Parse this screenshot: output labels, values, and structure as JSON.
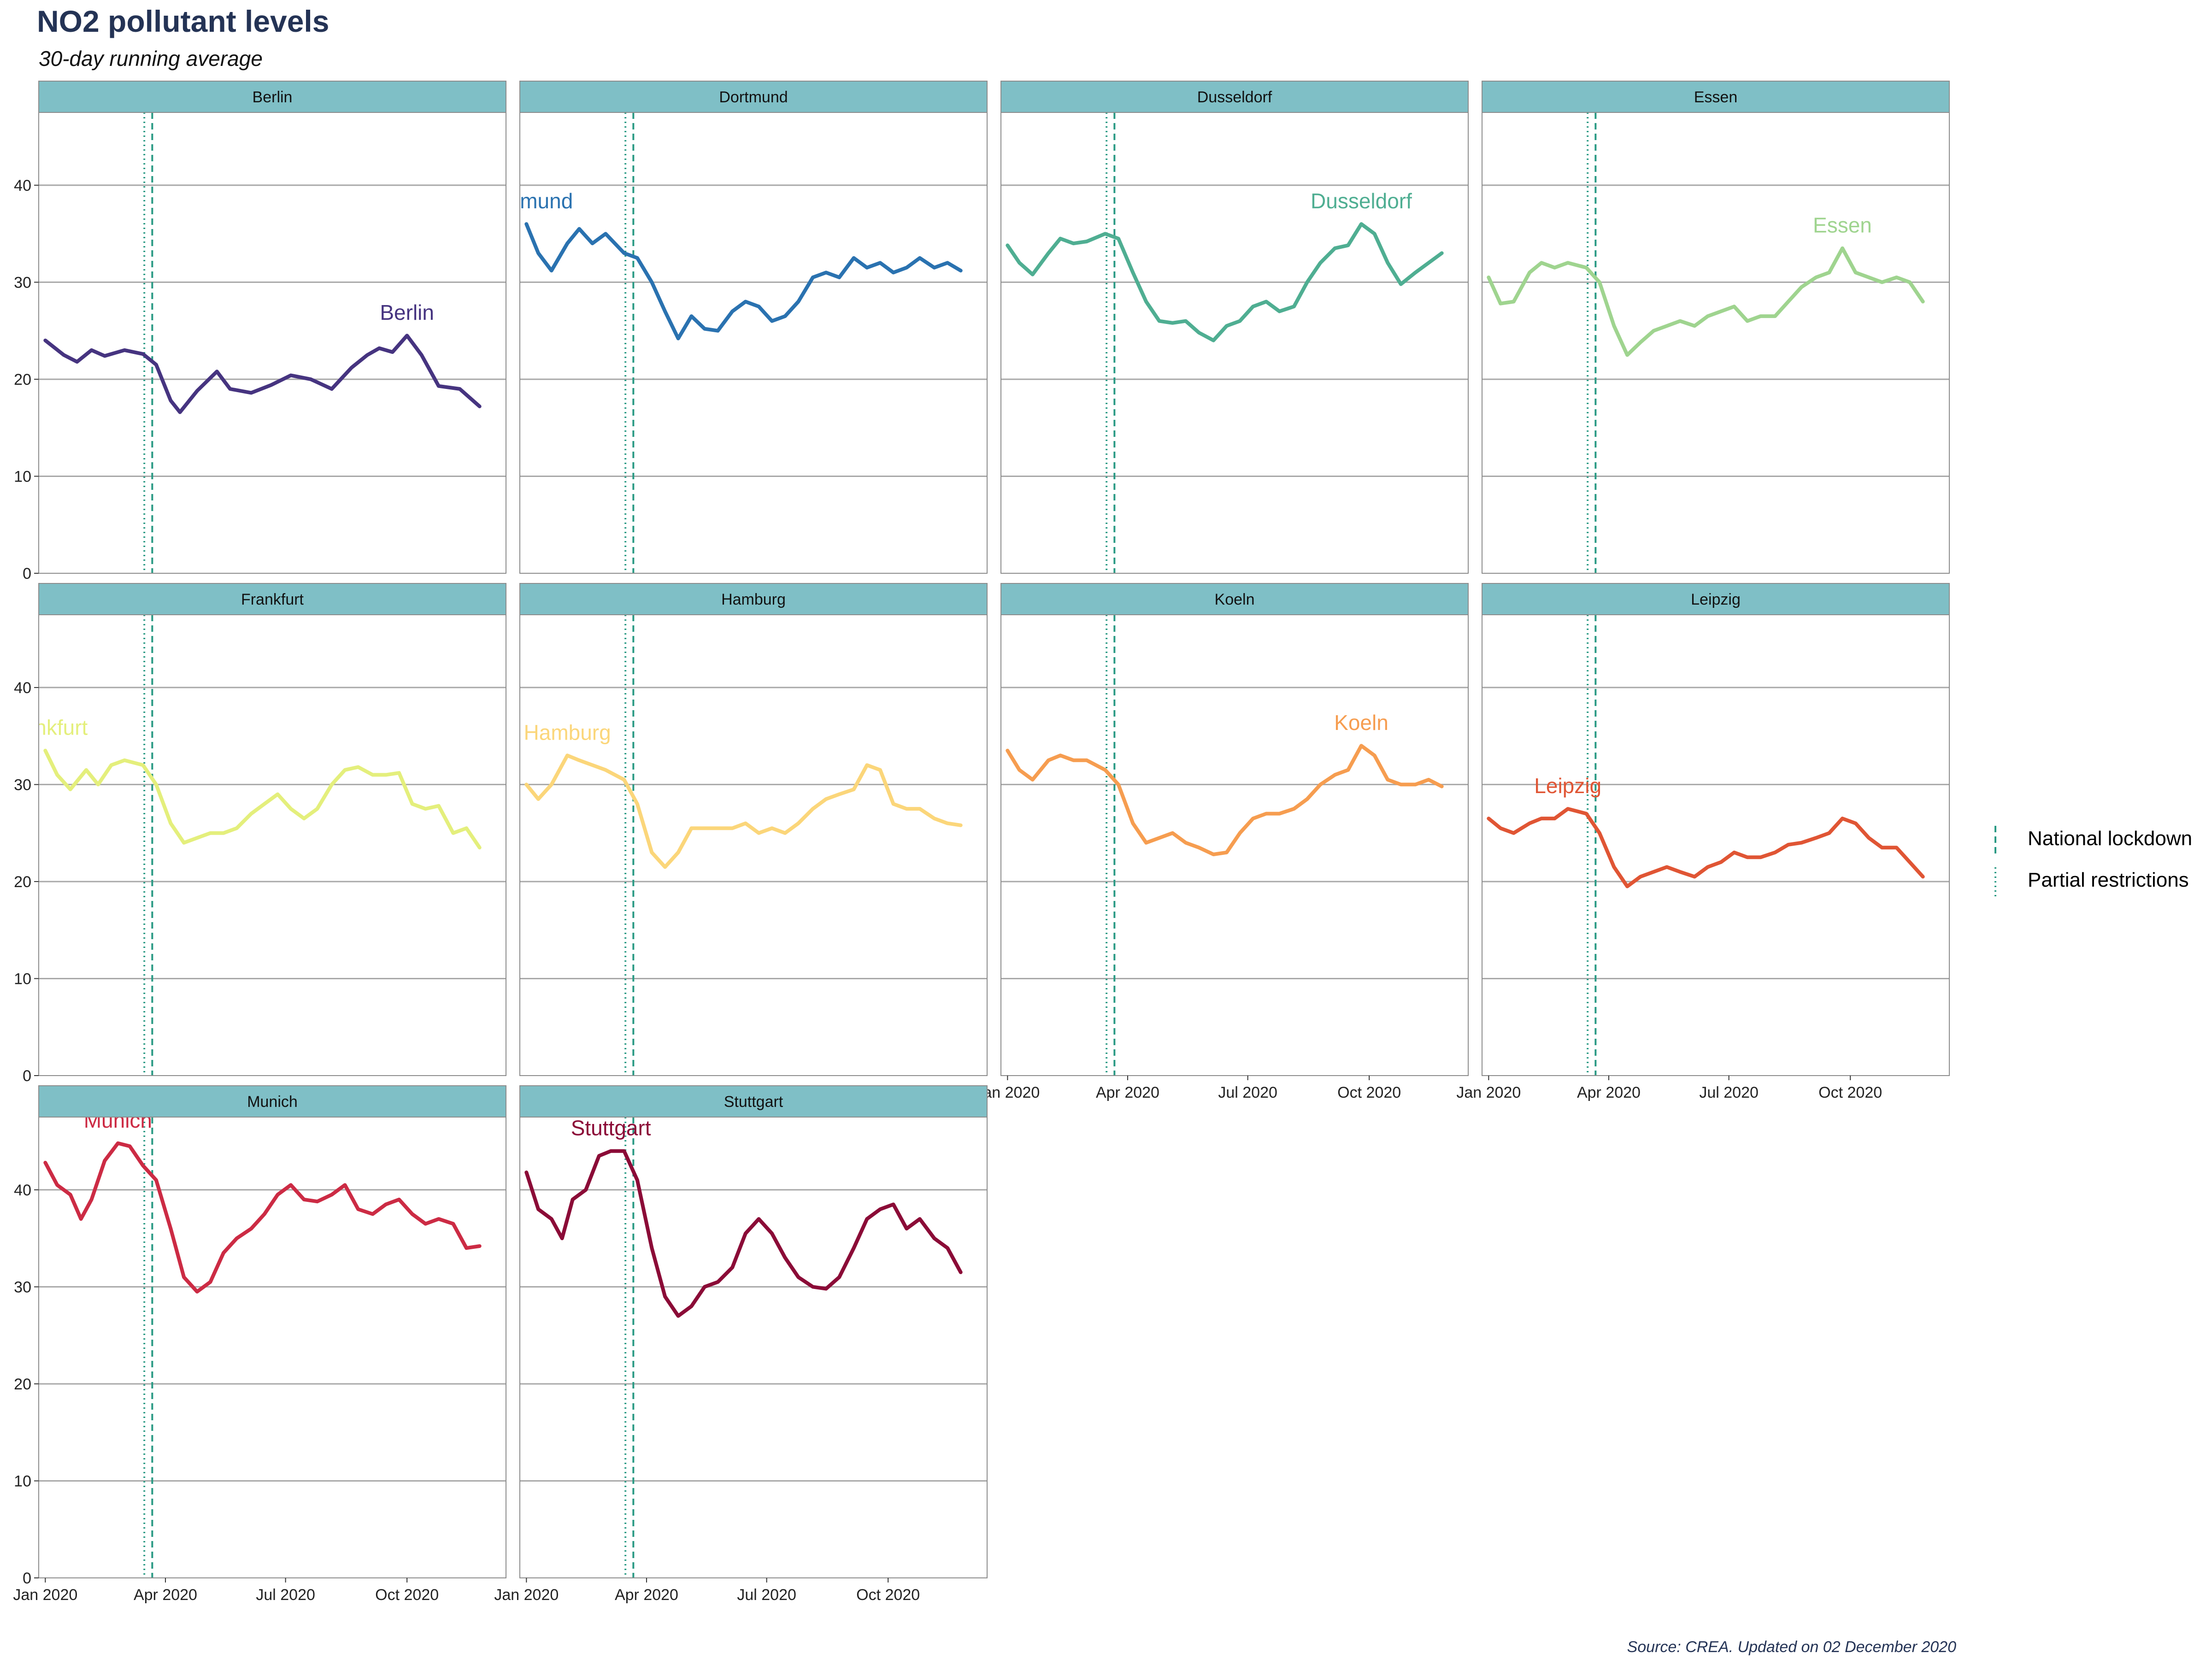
{
  "title": "NO2 pollutant levels",
  "subtitle": "30-day running average",
  "caption": "Source: CREA. Updated on 02 December 2020",
  "colors": {
    "strip": "#7fbfc6",
    "grid": "#a8a8a8",
    "frame": "#8c8c8c",
    "reference_line": "#2a9a84"
  },
  "legend": {
    "placement": "right",
    "items": [
      {
        "label": "National lockdown",
        "linetype": "dashed"
      },
      {
        "label": "Partial restrictions",
        "linetype": "dotted"
      }
    ]
  },
  "chart_data": {
    "type": "line",
    "facets": "small multiples, 4 columns",
    "x_axis": {
      "type": "date",
      "range": [
        "2019-12-27",
        "2020-12-15"
      ],
      "ticks": [
        "2020-01-01",
        "2020-04-01",
        "2020-07-01",
        "2020-10-01"
      ],
      "tick_labels": [
        "Jan 2020",
        "Apr 2020",
        "Jul 2020",
        "Oct 2020"
      ]
    },
    "y_axis": {
      "range": [
        0,
        47.5
      ],
      "ticks": [
        0,
        10,
        20,
        30,
        40
      ],
      "grid": true
    },
    "reference_lines": [
      {
        "label": "Partial restrictions",
        "date": "2020-03-16",
        "linetype": "dotted"
      },
      {
        "label": "National lockdown",
        "date": "2020-03-22",
        "linetype": "dashed"
      }
    ],
    "series": [
      {
        "name": "Berlin",
        "color": "#463480",
        "x": [
          "2020-01-01",
          "2020-01-15",
          "2020-01-25",
          "2020-02-05",
          "2020-02-15",
          "2020-03-01",
          "2020-03-15",
          "2020-03-25",
          "2020-04-05",
          "2020-04-12",
          "2020-04-25",
          "2020-05-10",
          "2020-05-20",
          "2020-06-05",
          "2020-06-20",
          "2020-07-05",
          "2020-07-20",
          "2020-08-05",
          "2020-08-20",
          "2020-09-01",
          "2020-09-10",
          "2020-09-20",
          "2020-10-01",
          "2020-10-12",
          "2020-10-25",
          "2020-11-10",
          "2020-11-25"
        ],
        "y": [
          24,
          22.5,
          21.8,
          23,
          22.4,
          23,
          22.6,
          21.5,
          17.8,
          16.6,
          18.8,
          20.8,
          19,
          18.6,
          19.4,
          20.4,
          20,
          19,
          21.2,
          22.5,
          23.2,
          22.8,
          24.5,
          22.5,
          19.3,
          19,
          17.2
        ]
      },
      {
        "name": "Dortmund",
        "color": "#2a72b0",
        "x": [
          "2020-01-01",
          "2020-01-10",
          "2020-01-20",
          "2020-02-01",
          "2020-02-10",
          "2020-02-20",
          "2020-03-01",
          "2020-03-15",
          "2020-03-25",
          "2020-04-05",
          "2020-04-15",
          "2020-04-25",
          "2020-05-05",
          "2020-05-15",
          "2020-05-25",
          "2020-06-05",
          "2020-06-15",
          "2020-06-25",
          "2020-07-05",
          "2020-07-15",
          "2020-07-25",
          "2020-08-05",
          "2020-08-15",
          "2020-08-25",
          "2020-09-05",
          "2020-09-15",
          "2020-09-25",
          "2020-10-05",
          "2020-10-15",
          "2020-10-25",
          "2020-11-05",
          "2020-11-15",
          "2020-11-25"
        ],
        "y": [
          36,
          33,
          31.2,
          34,
          35.5,
          34,
          35,
          33,
          32.5,
          30,
          27,
          24.2,
          26.5,
          25.2,
          25,
          27,
          28,
          27.5,
          26,
          26.5,
          28,
          30.5,
          31,
          30.5,
          32.5,
          31.5,
          32,
          31,
          31.5,
          32.5,
          31.5,
          32,
          31.2
        ]
      },
      {
        "name": "Dusseldorf",
        "color": "#4fae92",
        "x": [
          "2020-01-01",
          "2020-01-10",
          "2020-01-20",
          "2020-02-01",
          "2020-02-10",
          "2020-02-20",
          "2020-03-01",
          "2020-03-15",
          "2020-03-25",
          "2020-04-05",
          "2020-04-15",
          "2020-04-25",
          "2020-05-05",
          "2020-05-15",
          "2020-05-25",
          "2020-06-05",
          "2020-06-15",
          "2020-06-25",
          "2020-07-05",
          "2020-07-15",
          "2020-07-25",
          "2020-08-05",
          "2020-08-15",
          "2020-08-25",
          "2020-09-05",
          "2020-09-15",
          "2020-09-25",
          "2020-10-05",
          "2020-10-15",
          "2020-10-25",
          "2020-11-05",
          "2020-11-15",
          "2020-11-25"
        ],
        "y": [
          33.8,
          32,
          30.8,
          33,
          34.5,
          34,
          34.2,
          35,
          34.5,
          31,
          28,
          26,
          25.8,
          26,
          24.8,
          24,
          25.5,
          26,
          27.5,
          28,
          27,
          27.5,
          30,
          32,
          33.5,
          33.8,
          36,
          35,
          32,
          29.8,
          31,
          32,
          33
        ]
      },
      {
        "name": "Essen",
        "color": "#9fd48f",
        "x": [
          "2020-01-01",
          "2020-01-10",
          "2020-01-20",
          "2020-02-01",
          "2020-02-10",
          "2020-02-20",
          "2020-03-01",
          "2020-03-15",
          "2020-03-25",
          "2020-04-05",
          "2020-04-15",
          "2020-04-25",
          "2020-05-05",
          "2020-05-15",
          "2020-05-25",
          "2020-06-05",
          "2020-06-15",
          "2020-06-25",
          "2020-07-05",
          "2020-07-15",
          "2020-07-25",
          "2020-08-05",
          "2020-08-15",
          "2020-08-25",
          "2020-09-05",
          "2020-09-15",
          "2020-09-25",
          "2020-10-05",
          "2020-10-15",
          "2020-10-25",
          "2020-11-05",
          "2020-11-15",
          "2020-11-25"
        ],
        "y": [
          30.5,
          27.8,
          28,
          31,
          32,
          31.5,
          32,
          31.5,
          30,
          25.5,
          22.5,
          23.8,
          25,
          25.5,
          26,
          25.5,
          26.5,
          27,
          27.5,
          26,
          26.5,
          26.5,
          28,
          29.5,
          30.5,
          31,
          33.5,
          31,
          30.5,
          30,
          30.5,
          30,
          28
        ]
      },
      {
        "name": "Frankfurt",
        "color": "#e4ef7c",
        "x": [
          "2020-01-01",
          "2020-01-10",
          "2020-01-20",
          "2020-02-01",
          "2020-02-10",
          "2020-02-20",
          "2020-03-01",
          "2020-03-15",
          "2020-03-25",
          "2020-04-05",
          "2020-04-15",
          "2020-04-25",
          "2020-05-05",
          "2020-05-15",
          "2020-05-25",
          "2020-06-05",
          "2020-06-15",
          "2020-06-25",
          "2020-07-05",
          "2020-07-15",
          "2020-07-25",
          "2020-08-05",
          "2020-08-15",
          "2020-08-25",
          "2020-09-05",
          "2020-09-15",
          "2020-09-25",
          "2020-10-05",
          "2020-10-15",
          "2020-10-25",
          "2020-11-05",
          "2020-11-15",
          "2020-11-25"
        ],
        "y": [
          33.5,
          31,
          29.5,
          31.5,
          30,
          32,
          32.5,
          32,
          30,
          26,
          24,
          24.5,
          25,
          25,
          25.5,
          27,
          28,
          29,
          27.5,
          26.5,
          27.5,
          30,
          31.5,
          31.8,
          31,
          31,
          31.2,
          28,
          27.5,
          27.8,
          25,
          25.5,
          23.5
        ]
      },
      {
        "name": "Hamburg",
        "color": "#fbd67a",
        "x": [
          "2020-01-01",
          "2020-01-10",
          "2020-01-20",
          "2020-02-01",
          "2020-02-10",
          "2020-02-20",
          "2020-03-01",
          "2020-03-15",
          "2020-03-25",
          "2020-04-05",
          "2020-04-15",
          "2020-04-25",
          "2020-05-05",
          "2020-05-15",
          "2020-05-25",
          "2020-06-05",
          "2020-06-15",
          "2020-06-25",
          "2020-07-05",
          "2020-07-15",
          "2020-07-25",
          "2020-08-05",
          "2020-08-15",
          "2020-08-25",
          "2020-09-05",
          "2020-09-15",
          "2020-09-25",
          "2020-10-05",
          "2020-10-15",
          "2020-10-25",
          "2020-11-05",
          "2020-11-15",
          "2020-11-25"
        ],
        "y": [
          30,
          28.5,
          30,
          33,
          32.5,
          32,
          31.5,
          30.5,
          28,
          23,
          21.5,
          23,
          25.5,
          25.5,
          25.5,
          25.5,
          26,
          25,
          25.5,
          25,
          26,
          27.5,
          28.5,
          29,
          29.5,
          32,
          31.5,
          28,
          27.5,
          27.5,
          26.5,
          26,
          25.8
        ]
      },
      {
        "name": "Koeln",
        "color": "#f69d50",
        "x": [
          "2020-01-01",
          "2020-01-10",
          "2020-01-20",
          "2020-02-01",
          "2020-02-10",
          "2020-02-20",
          "2020-03-01",
          "2020-03-15",
          "2020-03-25",
          "2020-04-05",
          "2020-04-15",
          "2020-04-25",
          "2020-05-05",
          "2020-05-15",
          "2020-05-25",
          "2020-06-05",
          "2020-06-15",
          "2020-06-25",
          "2020-07-05",
          "2020-07-15",
          "2020-07-25",
          "2020-08-05",
          "2020-08-15",
          "2020-08-25",
          "2020-09-05",
          "2020-09-15",
          "2020-09-25",
          "2020-10-05",
          "2020-10-15",
          "2020-10-25",
          "2020-11-05",
          "2020-11-15",
          "2020-11-25"
        ],
        "y": [
          33.5,
          31.5,
          30.5,
          32.5,
          33,
          32.5,
          32.5,
          31.5,
          30,
          26,
          24,
          24.5,
          25,
          24,
          23.5,
          22.8,
          23,
          25,
          26.5,
          27,
          27,
          27.5,
          28.5,
          30,
          31,
          31.5,
          34,
          33,
          30.5,
          30,
          30,
          30.5,
          29.8
        ]
      },
      {
        "name": "Leipzig",
        "color": "#e05534",
        "x": [
          "2020-01-01",
          "2020-01-10",
          "2020-01-20",
          "2020-02-01",
          "2020-02-10",
          "2020-02-20",
          "2020-03-01",
          "2020-03-15",
          "2020-03-25",
          "2020-04-05",
          "2020-04-15",
          "2020-04-25",
          "2020-05-05",
          "2020-05-15",
          "2020-05-25",
          "2020-06-05",
          "2020-06-15",
          "2020-06-25",
          "2020-07-05",
          "2020-07-15",
          "2020-07-25",
          "2020-08-05",
          "2020-08-15",
          "2020-08-25",
          "2020-09-05",
          "2020-09-15",
          "2020-09-25",
          "2020-10-05",
          "2020-10-15",
          "2020-10-25",
          "2020-11-05",
          "2020-11-15",
          "2020-11-25"
        ],
        "y": [
          26.5,
          25.5,
          25,
          26,
          26.5,
          26.5,
          27.5,
          27,
          25,
          21.5,
          19.5,
          20.5,
          21,
          21.5,
          21,
          20.5,
          21.5,
          22,
          23,
          22.5,
          22.5,
          23,
          23.8,
          24,
          24.5,
          25,
          26.5,
          26,
          24.5,
          23.5,
          23.5,
          22,
          20.5
        ]
      },
      {
        "name": "Munich",
        "color": "#cc2b44",
        "x": [
          "2020-01-01",
          "2020-01-10",
          "2020-01-20",
          "2020-01-28",
          "2020-02-05",
          "2020-02-15",
          "2020-02-25",
          "2020-03-05",
          "2020-03-15",
          "2020-03-25",
          "2020-04-05",
          "2020-04-15",
          "2020-04-25",
          "2020-05-05",
          "2020-05-15",
          "2020-05-25",
          "2020-06-05",
          "2020-06-15",
          "2020-06-25",
          "2020-07-05",
          "2020-07-15",
          "2020-07-25",
          "2020-08-05",
          "2020-08-15",
          "2020-08-25",
          "2020-09-05",
          "2020-09-15",
          "2020-09-25",
          "2020-10-05",
          "2020-10-15",
          "2020-10-25",
          "2020-11-05",
          "2020-11-15",
          "2020-11-25"
        ],
        "y": [
          42.8,
          40.5,
          39.5,
          37,
          39,
          43,
          44.8,
          44.5,
          42.5,
          41,
          36,
          31,
          29.5,
          30.5,
          33.5,
          35,
          36,
          37.5,
          39.5,
          40.5,
          39,
          38.8,
          39.5,
          40.5,
          38,
          37.5,
          38.5,
          39,
          37.5,
          36.5,
          37,
          36.5,
          34,
          34.2
        ]
      },
      {
        "name": "Stuttgart",
        "color": "#8b0b37",
        "x": [
          "2020-01-01",
          "2020-01-10",
          "2020-01-20",
          "2020-01-28",
          "2020-02-05",
          "2020-02-15",
          "2020-02-25",
          "2020-03-05",
          "2020-03-15",
          "2020-03-25",
          "2020-04-05",
          "2020-04-15",
          "2020-04-25",
          "2020-05-05",
          "2020-05-15",
          "2020-05-25",
          "2020-06-05",
          "2020-06-15",
          "2020-06-25",
          "2020-07-05",
          "2020-07-15",
          "2020-07-25",
          "2020-08-05",
          "2020-08-15",
          "2020-08-25",
          "2020-09-05",
          "2020-09-15",
          "2020-09-25",
          "2020-10-05",
          "2020-10-15",
          "2020-10-25",
          "2020-11-05",
          "2020-11-15",
          "2020-11-25"
        ],
        "y": [
          41.8,
          38,
          37,
          35,
          39,
          40,
          43.5,
          44,
          44,
          41,
          34,
          29,
          27,
          28,
          30,
          30.5,
          32,
          35.5,
          37,
          35.5,
          33,
          31,
          30,
          29.8,
          31,
          34,
          37,
          38,
          38.5,
          36,
          37,
          35,
          34,
          31.5
        ]
      }
    ]
  }
}
